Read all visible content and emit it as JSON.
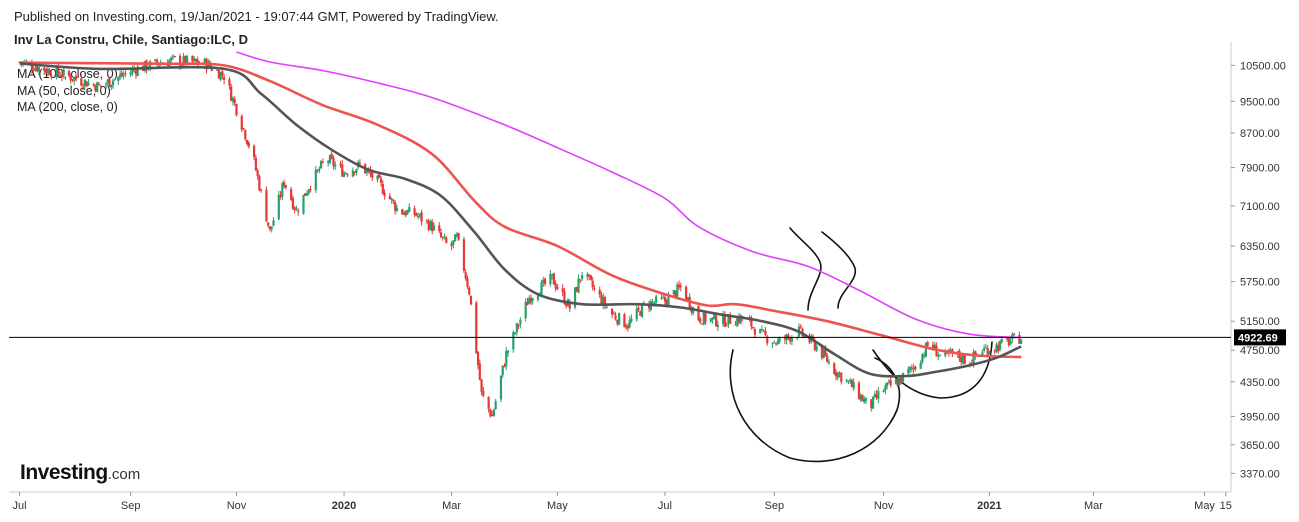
{
  "header": {
    "published": "Published on Investing.com, 19/Jan/2021 - 19:07:44 GMT, Powered by TradingView.",
    "symbol": "Inv La Constru, Chile, Santiago:ILC, D"
  },
  "legend": {
    "items": [
      "MA (100, close, 0)",
      "MA (50, close, 0)",
      "MA (200, close, 0)"
    ]
  },
  "logo": {
    "word": "Investing",
    "suffix": ".com"
  },
  "colors": {
    "up": "#26a269",
    "down": "#e53935",
    "ma50": "#555555",
    "ma100": "#ef5350",
    "ma200": "#e040fb",
    "price_line": "#000000",
    "price_label_bg": "#000000",
    "price_label_text": "#ffffff",
    "axis": "#cccccc"
  },
  "chart_data": {
    "type": "line",
    "title": "Inv La Constru, Chile, Santiago:ILC, D",
    "y_scale": "log",
    "ylim": [
      3200,
      10900
    ],
    "xlim": [
      "2019-06-25",
      "2021-05-18"
    ],
    "grid": false,
    "legend_position": "top-left",
    "x_ticks": [
      {
        "date": "2019-07-01",
        "label": "Jul"
      },
      {
        "date": "2019-09-02",
        "label": "Sep"
      },
      {
        "date": "2019-11-01",
        "label": "Nov"
      },
      {
        "date": "2020-01-01",
        "label": "2020"
      },
      {
        "date": "2020-03-02",
        "label": "Mar"
      },
      {
        "date": "2020-05-01",
        "label": "May"
      },
      {
        "date": "2020-07-01",
        "label": "Jul"
      },
      {
        "date": "2020-09-01",
        "label": "Sep"
      },
      {
        "date": "2020-11-02",
        "label": "Nov"
      },
      {
        "date": "2021-01-01",
        "label": "2021"
      },
      {
        "date": "2021-03-01",
        "label": "Mar"
      },
      {
        "date": "2021-05-03",
        "label": "May"
      },
      {
        "date": "2021-05-15",
        "label": "15"
      }
    ],
    "y_ticks": [
      {
        "value": 10500,
        "label": "10500.00"
      },
      {
        "value": 9500,
        "label": "9500.00"
      },
      {
        "value": 8700,
        "label": "8700.00"
      },
      {
        "value": 7900,
        "label": "7900.00"
      },
      {
        "value": 7100,
        "label": "7100.00"
      },
      {
        "value": 6350,
        "label": "6350.00"
      },
      {
        "value": 5750,
        "label": "5750.00"
      },
      {
        "value": 5150,
        "label": "5150.00"
      },
      {
        "value": 4750,
        "label": "4750.00"
      },
      {
        "value": 4350,
        "label": "4350.00"
      },
      {
        "value": 3950,
        "label": "3950.00"
      },
      {
        "value": 3650,
        "label": "3650.00"
      },
      {
        "value": 3370,
        "label": "3370.00"
      }
    ],
    "last_price": {
      "value": 4922.69,
      "label": "4922.69"
    },
    "price_path": [
      [
        "2019-07-01",
        10600
      ],
      [
        "2019-07-25",
        10250
      ],
      [
        "2019-08-15",
        9900
      ],
      [
        "2019-09-05",
        10400
      ],
      [
        "2019-09-25",
        10650
      ],
      [
        "2019-10-15",
        10550
      ],
      [
        "2019-10-25",
        10200
      ],
      [
        "2019-11-01",
        9300
      ],
      [
        "2019-11-10",
        8200
      ],
      [
        "2019-11-20",
        6600
      ],
      [
        "2019-11-28",
        7600
      ],
      [
        "2019-12-05",
        7000
      ],
      [
        "2019-12-12",
        7500
      ],
      [
        "2019-12-22",
        8100
      ],
      [
        "2020-01-01",
        7800
      ],
      [
        "2020-01-10",
        7950
      ],
      [
        "2020-01-20",
        7600
      ],
      [
        "2020-02-01",
        7000
      ],
      [
        "2020-02-10",
        6950
      ],
      [
        "2020-02-20",
        6700
      ],
      [
        "2020-03-01",
        6300
      ],
      [
        "2020-03-05",
        6500
      ],
      [
        "2020-03-12",
        5600
      ],
      [
        "2020-03-19",
        4200
      ],
      [
        "2020-03-25",
        3950
      ],
      [
        "2020-04-02",
        4700
      ],
      [
        "2020-04-15",
        5500
      ],
      [
        "2020-04-28",
        5800
      ],
      [
        "2020-05-08",
        5350
      ],
      [
        "2020-05-15",
        5900
      ],
      [
        "2020-05-25",
        5500
      ],
      [
        "2020-06-01",
        5250
      ],
      [
        "2020-06-10",
        5100
      ],
      [
        "2020-06-20",
        5400
      ],
      [
        "2020-07-01",
        5450
      ],
      [
        "2020-07-10",
        5650
      ],
      [
        "2020-07-20",
        5200
      ],
      [
        "2020-08-01",
        5150
      ],
      [
        "2020-08-15",
        5200
      ],
      [
        "2020-08-25",
        4950
      ],
      [
        "2020-09-03",
        4850
      ],
      [
        "2020-09-15",
        5000
      ],
      [
        "2020-09-25",
        4800
      ],
      [
        "2020-10-05",
        4500
      ],
      [
        "2020-10-15",
        4300
      ],
      [
        "2020-10-25",
        4050
      ],
      [
        "2020-11-01",
        4250
      ],
      [
        "2020-11-10",
        4350
      ],
      [
        "2020-11-20",
        4550
      ],
      [
        "2020-11-28",
        4850
      ],
      [
        "2020-12-05",
        4650
      ],
      [
        "2020-12-12",
        4700
      ],
      [
        "2020-12-20",
        4600
      ],
      [
        "2020-12-28",
        4750
      ],
      [
        "2021-01-05",
        4800
      ],
      [
        "2021-01-12",
        4870
      ],
      [
        "2021-01-19",
        4922.69
      ]
    ],
    "series": [
      {
        "name": "MA (100, close, 0)",
        "points": [
          [
            "2019-07-01",
            10580
          ],
          [
            "2019-09-20",
            10550
          ],
          [
            "2019-10-25",
            10500
          ],
          [
            "2019-11-20",
            10050
          ],
          [
            "2019-12-20",
            9400
          ],
          [
            "2020-01-20",
            8900
          ],
          [
            "2020-02-20",
            8200
          ],
          [
            "2020-03-15",
            7200
          ],
          [
            "2020-04-01",
            6700
          ],
          [
            "2020-05-01",
            6350
          ],
          [
            "2020-06-01",
            5850
          ],
          [
            "2020-07-01",
            5550
          ],
          [
            "2020-07-25",
            5380
          ],
          [
            "2020-08-10",
            5400
          ],
          [
            "2020-09-01",
            5300
          ],
          [
            "2020-10-01",
            5150
          ],
          [
            "2020-11-01",
            4950
          ],
          [
            "2020-12-01",
            4760
          ],
          [
            "2020-12-25",
            4680
          ],
          [
            "2021-01-19",
            4660
          ]
        ]
      },
      {
        "name": "MA (50, close, 0)",
        "points": [
          [
            "2019-07-01",
            10560
          ],
          [
            "2019-08-15",
            10400
          ],
          [
            "2019-10-25",
            10400
          ],
          [
            "2019-11-15",
            9700
          ],
          [
            "2019-12-05",
            8900
          ],
          [
            "2019-12-25",
            8300
          ],
          [
            "2020-01-15",
            7850
          ],
          [
            "2020-02-05",
            7650
          ],
          [
            "2020-02-25",
            7300
          ],
          [
            "2020-03-15",
            6600
          ],
          [
            "2020-04-01",
            5950
          ],
          [
            "2020-04-20",
            5550
          ],
          [
            "2020-05-15",
            5400
          ],
          [
            "2020-06-15",
            5400
          ],
          [
            "2020-07-10",
            5350
          ],
          [
            "2020-08-01",
            5250
          ],
          [
            "2020-08-25",
            5150
          ],
          [
            "2020-09-15",
            5000
          ],
          [
            "2020-10-05",
            4700
          ],
          [
            "2020-10-25",
            4450
          ],
          [
            "2020-11-15",
            4420
          ],
          [
            "2020-12-01",
            4470
          ],
          [
            "2020-12-20",
            4550
          ],
          [
            "2021-01-05",
            4650
          ],
          [
            "2021-01-19",
            4800
          ]
        ]
      },
      {
        "name": "MA (200, close, 0)",
        "points": [
          [
            "2019-11-01",
            10900
          ],
          [
            "2019-11-20",
            10600
          ],
          [
            "2019-12-20",
            10350
          ],
          [
            "2020-01-20",
            10000
          ],
          [
            "2020-02-20",
            9600
          ],
          [
            "2020-04-01",
            8900
          ],
          [
            "2020-05-01",
            8350
          ],
          [
            "2020-06-01",
            7800
          ],
          [
            "2020-07-01",
            7250
          ],
          [
            "2020-07-20",
            6700
          ],
          [
            "2020-08-20",
            6250
          ],
          [
            "2020-09-20",
            6000
          ],
          [
            "2020-10-20",
            5600
          ],
          [
            "2020-11-20",
            5180
          ],
          [
            "2020-12-20",
            4970
          ],
          [
            "2021-01-19",
            4920
          ]
        ]
      }
    ]
  }
}
